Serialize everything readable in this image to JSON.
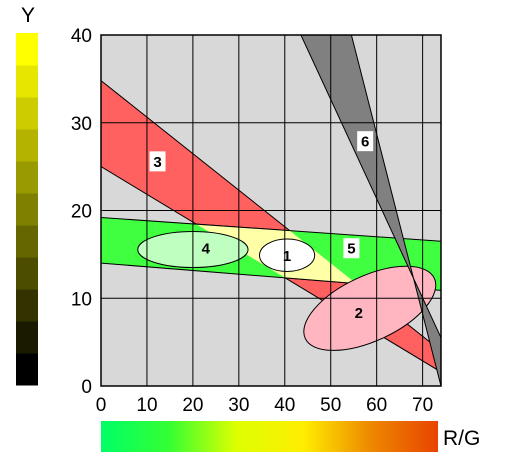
{
  "chart_data": {
    "type": "diagram",
    "xlabel": "R/G",
    "ylabel": "Y",
    "xlim": [
      0,
      74
    ],
    "ylim": [
      0,
      40
    ],
    "x_ticks": [
      0,
      10,
      20,
      30,
      40,
      50,
      60,
      70
    ],
    "y_ticks": [
      0,
      10,
      20,
      30,
      40
    ],
    "grid": true,
    "regions": [
      {
        "label": "1",
        "shape": "ellipse",
        "center": [
          40.5,
          14.9
        ],
        "radii": [
          6,
          1.85
        ],
        "rotation_deg": 0,
        "color": "#ffffff"
      },
      {
        "label": "2",
        "shape": "ellipse",
        "center": [
          58.5,
          8.85
        ],
        "radii": [
          15.5,
          3.7
        ],
        "rotation_deg": -25,
        "color": "#ffb6c1"
      },
      {
        "label": "3",
        "shape": "band",
        "upper_line": [
          [
            0,
            34.8
          ],
          [
            74,
            4.0
          ]
        ],
        "lower_line": [
          [
            0,
            25.0
          ],
          [
            74,
            1.6
          ]
        ],
        "color": "#ff6060"
      },
      {
        "label": "4",
        "shape": "ellipse",
        "center": [
          20,
          15.55
        ],
        "radii": [
          12,
          2.05
        ],
        "rotation_deg": 0,
        "color": "#bfffbf"
      },
      {
        "label": "5",
        "shape": "band",
        "upper_line": [
          [
            0,
            19.2
          ],
          [
            74,
            16.5
          ]
        ],
        "lower_line": [
          [
            0,
            14.0
          ],
          [
            74,
            10.9
          ]
        ],
        "color": "#40ff40"
      },
      {
        "label": "6",
        "shape": "band",
        "upper_line": [
          [
            43.5,
            40
          ],
          [
            74,
            5.5
          ]
        ],
        "lower_line": [
          [
            54.5,
            40
          ],
          [
            74,
            0
          ]
        ],
        "color": "#808080"
      }
    ],
    "region_overlap_color": "#ffffa8",
    "plot_background": "#d8d8d8",
    "y_colorbar": {
      "from_color": "#000000",
      "to_color": "#ffff00",
      "steps": 11
    },
    "x_colorbar": {
      "colors": [
        "#00ff66",
        "#33ff33",
        "#ddff00",
        "#ffee00",
        "#ee8800",
        "#e84400"
      ]
    }
  }
}
